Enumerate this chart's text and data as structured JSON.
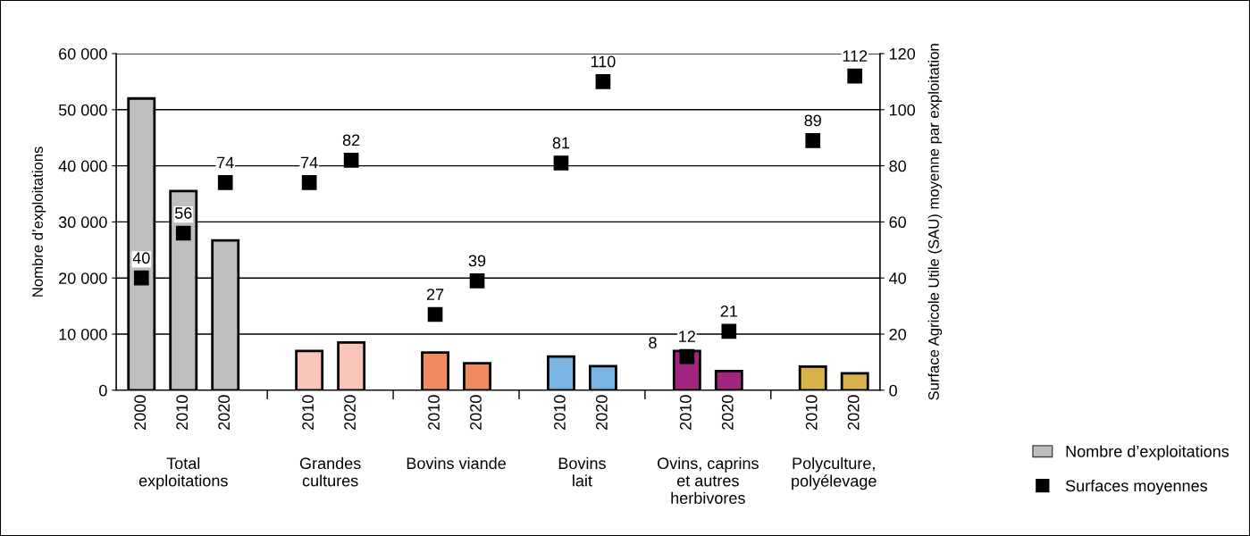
{
  "chart_data": {
    "type": "bar",
    "ylabel": "Nombre d’exploitations",
    "y2label": "Surface Agricole Utile (SAU) moyenne par exploitation",
    "categories": [
      "2000",
      "2010",
      "2020",
      null,
      "2010",
      "2020",
      null,
      "2010",
      "2020",
      null,
      "2010",
      "2020",
      null,
      "2010",
      "2020",
      null,
      "2010",
      "2020"
    ],
    "series": [
      {
        "name": "Nombre d’exploitations",
        "color": "#bfbfbf",
        "colors": [
          "#bfbfbf",
          "#bfbfbf",
          "#bfbfbf",
          null,
          "#f8c5b8",
          "#f8c5b8",
          null,
          "#ef8a62",
          "#ef8a62",
          null,
          "#7ab4e0",
          "#7ab4e0",
          null,
          "#a0267f",
          "#a0267f",
          null,
          "#d9b24c",
          "#d9b24c"
        ],
        "values": [
          52000,
          35500,
          26700,
          null,
          7000,
          8500,
          null,
          6700,
          4800,
          null,
          6000,
          4300,
          null,
          7000,
          3400,
          null,
          4200,
          3000
        ]
      },
      {
        "name": "Surfaces moyennes",
        "type": "scatter",
        "axis": "y2",
        "color": "#000000",
        "values": [
          40,
          56,
          74,
          null,
          74,
          82,
          null,
          27,
          39,
          null,
          81,
          110,
          null,
          12,
          21,
          null,
          89,
          112
        ],
        "value_labels": [
          "40",
          "56",
          "74",
          null,
          "74",
          "82",
          null,
          "27",
          "39",
          null,
          "81",
          "110",
          null,
          "12",
          "21",
          null,
          "89",
          "112"
        ]
      }
    ],
    "ylim": [
      0,
      60000
    ],
    "yticks": [
      {
        "value": 0,
        "label": "0"
      },
      {
        "value": 10000,
        "label": "10 000"
      },
      {
        "value": 20000,
        "label": "20 000"
      },
      {
        "value": 30000,
        "label": "30 000"
      },
      {
        "value": 40000,
        "label": "40 000"
      },
      {
        "value": 50000,
        "label": "50 000"
      },
      {
        "value": 60000,
        "label": "60 000"
      }
    ],
    "y2lim": [
      0,
      120
    ],
    "y2ticks": [
      0,
      20,
      40,
      60,
      80,
      100,
      120
    ],
    "grid": "y",
    "marker": "square",
    "legend": "bottom right",
    "annotations": [
      "Total\nexploitations",
      "Grandes\ncultures",
      "Bovins viande",
      "Bovins\nlait",
      "Ovins, caprins\net autres\nherbivores",
      "Polyculture,\npolyélevage",
      "8"
    ]
  }
}
